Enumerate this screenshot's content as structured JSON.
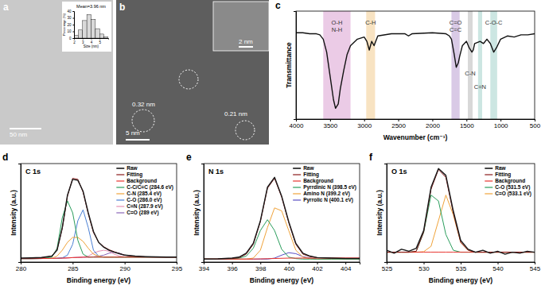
{
  "chart_data": [
    {
      "type": "image",
      "panel": "a",
      "annotations": [
        "50 nm"
      ]
    },
    {
      "type": "histogram",
      "title": "Mean=3.96 nm",
      "x_label": "Size (nm)",
      "y_label": "Percentage (%)",
      "bins": [
        2,
        2.5,
        3,
        3.5,
        4,
        4.5,
        5,
        5.5,
        6
      ],
      "values": [
        4,
        12,
        26,
        35,
        28,
        14,
        6,
        2
      ],
      "color": "#d9d9d9",
      "xlim": [
        2,
        6
      ],
      "xticks": [
        2,
        3,
        4,
        5
      ],
      "ylim": [
        0,
        40
      ],
      "yticks": [
        0,
        10,
        20,
        30,
        40
      ]
    },
    {
      "type": "image",
      "panel": "b",
      "annotations": [
        "0.32 nm",
        "0.21 nm",
        "5 nm",
        "2 nm"
      ]
    },
    {
      "type": "line",
      "panel": "c",
      "x_label": "Wavenumber (cm⁻¹)",
      "y_label": "Transmittance",
      "x": [
        4000,
        3900,
        3800,
        3700,
        3650,
        3600,
        3550,
        3500,
        3450,
        3420,
        3380,
        3350,
        3300,
        3250,
        3200,
        3100,
        3000,
        2960,
        2925,
        2890,
        2855,
        2800,
        2600,
        2400,
        2350,
        2300,
        2000,
        1800,
        1750,
        1720,
        1680,
        1650,
        1620,
        1600,
        1560,
        1500,
        1460,
        1420,
        1400,
        1380,
        1300,
        1250,
        1200,
        1150,
        1100,
        1060,
        1000,
        900,
        800,
        700,
        600,
        500
      ],
      "values": [
        80,
        80,
        79,
        79,
        78,
        74,
        62,
        40,
        18,
        10,
        14,
        28,
        45,
        60,
        68,
        74,
        76,
        72,
        64,
        72,
        68,
        77,
        79,
        79,
        77,
        79,
        80,
        79,
        77,
        74,
        60,
        48,
        52,
        58,
        68,
        72,
        66,
        62,
        64,
        70,
        72,
        70,
        74,
        70,
        62,
        66,
        74,
        77,
        76,
        78,
        78,
        79
      ],
      "color": "#111111",
      "xlim": [
        4000,
        500
      ],
      "xticks": [
        4000,
        3500,
        3000,
        2500,
        2000,
        1500,
        1000,
        500
      ],
      "ylim": [
        0,
        100
      ],
      "tick_labels": "x",
      "bands": [
        {
          "label": [
            "O-H",
            "N-H"
          ],
          "range": [
            3600,
            3200
          ],
          "color": "#e3b5dc"
        },
        {
          "label": [
            "C-H"
          ],
          "range": [
            2970,
            2840
          ],
          "color": "#f5d7a8"
        },
        {
          "label": [
            "C=O",
            "C=C"
          ],
          "range": [
            1720,
            1600
          ],
          "color": "#c9b3dc"
        },
        {
          "label": [
            "C-N"
          ],
          "range": [
            1480,
            1410
          ],
          "color": "#c8c8c8"
        },
        {
          "label": [
            "C=N"
          ],
          "range": [
            1330,
            1270
          ],
          "color": "#b7dcd6"
        },
        {
          "label": [
            "C-O-C"
          ],
          "range": [
            1150,
            1050
          ],
          "color": "#b7dcd6"
        }
      ]
    },
    {
      "type": "line",
      "panel": "d",
      "title": "C 1s",
      "x_label": "Binding energy (eV)",
      "y_label": "Intensity (a.u.)",
      "x": [
        280,
        281,
        282,
        283,
        283.5,
        284,
        284.5,
        285,
        285.5,
        286,
        286.5,
        287,
        287.5,
        288,
        288.5,
        289,
        289.5,
        290,
        291,
        292,
        293,
        294,
        295
      ],
      "series": [
        {
          "name": "Raw",
          "color": "#1a1a1a",
          "values": [
            4,
            4.2,
            4.6,
            6,
            12,
            35,
            68,
            84,
            83,
            72,
            50,
            31,
            20,
            15,
            12,
            10,
            8.5,
            7,
            6,
            5.5,
            5.2,
            5,
            5
          ]
        },
        {
          "name": "Fitting",
          "color": "#8b1a1a",
          "values": [
            3.6,
            3.7,
            4,
            6.2,
            12.5,
            34,
            67,
            85,
            84,
            71,
            49,
            30,
            20,
            15.5,
            12.5,
            10.5,
            8.5,
            7,
            5.8,
            5.3,
            5.1,
            5,
            5
          ]
        },
        {
          "name": "Background",
          "color": "#e8322d",
          "values": [
            3.5,
            3.5,
            3.6,
            3.7,
            3.8,
            4,
            4.2,
            4.5,
            4.7,
            4.9,
            5,
            5,
            5,
            5,
            5,
            5,
            5,
            5,
            5,
            5,
            5,
            5,
            5
          ]
        },
        {
          "name": "C-C/C=C (284.6 eV)",
          "color": "#2a9d5c",
          "values": [
            3.5,
            3.5,
            3.6,
            5,
            14,
            45,
            62,
            50,
            22,
            8,
            5,
            5,
            5,
            5,
            5,
            5,
            5,
            5,
            5,
            5,
            5,
            5,
            5
          ]
        },
        {
          "name": "C-N (285.4 eV)",
          "color": "#f0a33a",
          "values": [
            3.5,
            3.5,
            3.6,
            3.9,
            6,
            12,
            20,
            25,
            25,
            21,
            14,
            8,
            6,
            5,
            5,
            5,
            5,
            5,
            5,
            5,
            5,
            5,
            5
          ]
        },
        {
          "name": "C-O (286.0 eV)",
          "color": "#4a7fd4",
          "values": [
            3.5,
            3.5,
            3.6,
            3.7,
            3.8,
            4.2,
            7,
            18,
            42,
            53,
            35,
            12,
            6,
            5,
            5,
            5,
            5,
            5,
            5,
            5,
            5,
            5,
            5
          ]
        },
        {
          "name": "C=N (287.9 eV)",
          "color": "#e68fb4",
          "values": [
            3.5,
            3.5,
            3.6,
            3.7,
            3.8,
            4,
            4.2,
            4.5,
            4.8,
            5.2,
            6,
            9,
            11,
            12,
            11,
            8,
            6,
            5.3,
            5,
            5,
            5,
            5,
            5
          ]
        },
        {
          "name": "C=O (289 eV)",
          "color": "#8a63b8",
          "values": [
            3.5,
            3.5,
            3.6,
            3.7,
            3.8,
            4,
            4.2,
            4.5,
            4.7,
            4.9,
            5,
            5.3,
            6,
            7,
            9,
            10,
            9,
            7,
            5.5,
            5,
            5,
            5,
            5
          ]
        }
      ],
      "xlim": [
        280,
        295
      ],
      "xticks": [
        280,
        285,
        290,
        295
      ],
      "ylim": [
        0,
        100
      ],
      "tick_labels": "x",
      "legend": "top-right"
    },
    {
      "type": "line",
      "panel": "e",
      "title": "N 1s",
      "x_label": "Binding energy (eV)",
      "y_label": "Intensity (a.u.)",
      "x": [
        394,
        395,
        396,
        396.5,
        397,
        397.5,
        398,
        398.5,
        399,
        399.5,
        400,
        400.5,
        401,
        401.5,
        402,
        403,
        404,
        405
      ],
      "series": [
        {
          "name": "Raw",
          "color": "#1a1a1a",
          "values": [
            3,
            3.2,
            4,
            5,
            9,
            19,
            42,
            76,
            86,
            67,
            41,
            19,
            9,
            6,
            4.5,
            4,
            3.5,
            3.5
          ]
        },
        {
          "name": "Fitting",
          "color": "#8b1a1a",
          "values": [
            3,
            3,
            3.5,
            4.5,
            8,
            18,
            41,
            75,
            85,
            66,
            40,
            18,
            8,
            5.5,
            4.5,
            4,
            4,
            4
          ]
        },
        {
          "name": "Background",
          "color": "#e8322d",
          "values": [
            3,
            3,
            3,
            3,
            3,
            3,
            3.2,
            3.4,
            3.6,
            3.8,
            4,
            4,
            4,
            4,
            4,
            4,
            4,
            4
          ]
        },
        {
          "name": "Pyrrdinic N (398.5 eV)",
          "color": "#2a9d5c",
          "values": [
            3,
            3,
            3,
            4,
            6,
            14,
            32,
            43,
            32,
            13,
            5,
            3.5,
            3,
            3,
            3,
            3,
            3,
            3
          ]
        },
        {
          "name": "Amino N (399.2 eV)",
          "color": "#f0a33a",
          "values": [
            3,
            3,
            3,
            3,
            3,
            4,
            12,
            35,
            55,
            52,
            32,
            12,
            5,
            3.5,
            3,
            3,
            3,
            3
          ]
        },
        {
          "name": "Pyrrolic N (400.1 eV)",
          "color": "#5b4fc4",
          "values": [
            3,
            3,
            3,
            3,
            3,
            3,
            3,
            3,
            4,
            7,
            9.5,
            8.5,
            5.5,
            4,
            3,
            3,
            3,
            3
          ]
        }
      ],
      "xlim": [
        394,
        405
      ],
      "xticks": [
        394,
        396,
        398,
        400,
        402,
        404
      ],
      "ylim": [
        0,
        100
      ],
      "tick_labels": "x",
      "legend": "top-right"
    },
    {
      "type": "line",
      "panel": "f",
      "title": "O 1s",
      "x_label": "Binding energy (eV)",
      "y_label": "Intensity (a.u.)",
      "x": [
        525,
        526,
        527,
        528,
        529,
        530,
        531,
        532,
        533,
        534,
        535,
        536,
        537,
        538,
        539,
        540,
        541,
        542,
        543,
        544,
        545
      ],
      "series": [
        {
          "name": "Raw",
          "color": "#1a1a1a",
          "values": [
            12,
            9,
            13,
            11,
            14,
            32,
            76,
            95,
            88,
            52,
            22,
            13,
            10,
            12,
            9,
            11,
            8,
            10,
            9,
            11,
            10
          ]
        },
        {
          "name": "Fitting",
          "color": "#8b1a1a",
          "values": [
            10,
            10,
            10,
            10,
            11,
            30.5,
            74,
            94,
            86,
            50,
            20,
            12,
            10,
            10,
            10,
            10,
            10,
            10,
            10,
            10,
            10
          ]
        },
        {
          "name": "Background",
          "color": "#e8322d",
          "values": [
            10,
            10,
            10,
            10,
            10,
            10,
            10,
            10,
            10,
            10,
            10,
            10,
            10,
            10,
            10,
            10,
            10,
            10,
            10,
            10,
            10
          ]
        },
        {
          "name": "C-O (531.5 eV)",
          "color": "#2a9d5c",
          "values": [
            10,
            10,
            10,
            10,
            11,
            30,
            68,
            62,
            28,
            12,
            10,
            10,
            10,
            10,
            10,
            10,
            10,
            10,
            10,
            10,
            10
          ]
        },
        {
          "name": "C=O (533.1 eV)",
          "color": "#f0a33a",
          "values": [
            10,
            10,
            10,
            10,
            10,
            10.5,
            16,
            42,
            68,
            48,
            20,
            12,
            10,
            10,
            10,
            10,
            10,
            10,
            10,
            10,
            10
          ]
        }
      ],
      "xlim": [
        525,
        545
      ],
      "xticks": [
        525,
        530,
        535,
        540,
        545
      ],
      "ylim": [
        0,
        100
      ],
      "tick_labels": "x",
      "legend": "top-right"
    }
  ]
}
